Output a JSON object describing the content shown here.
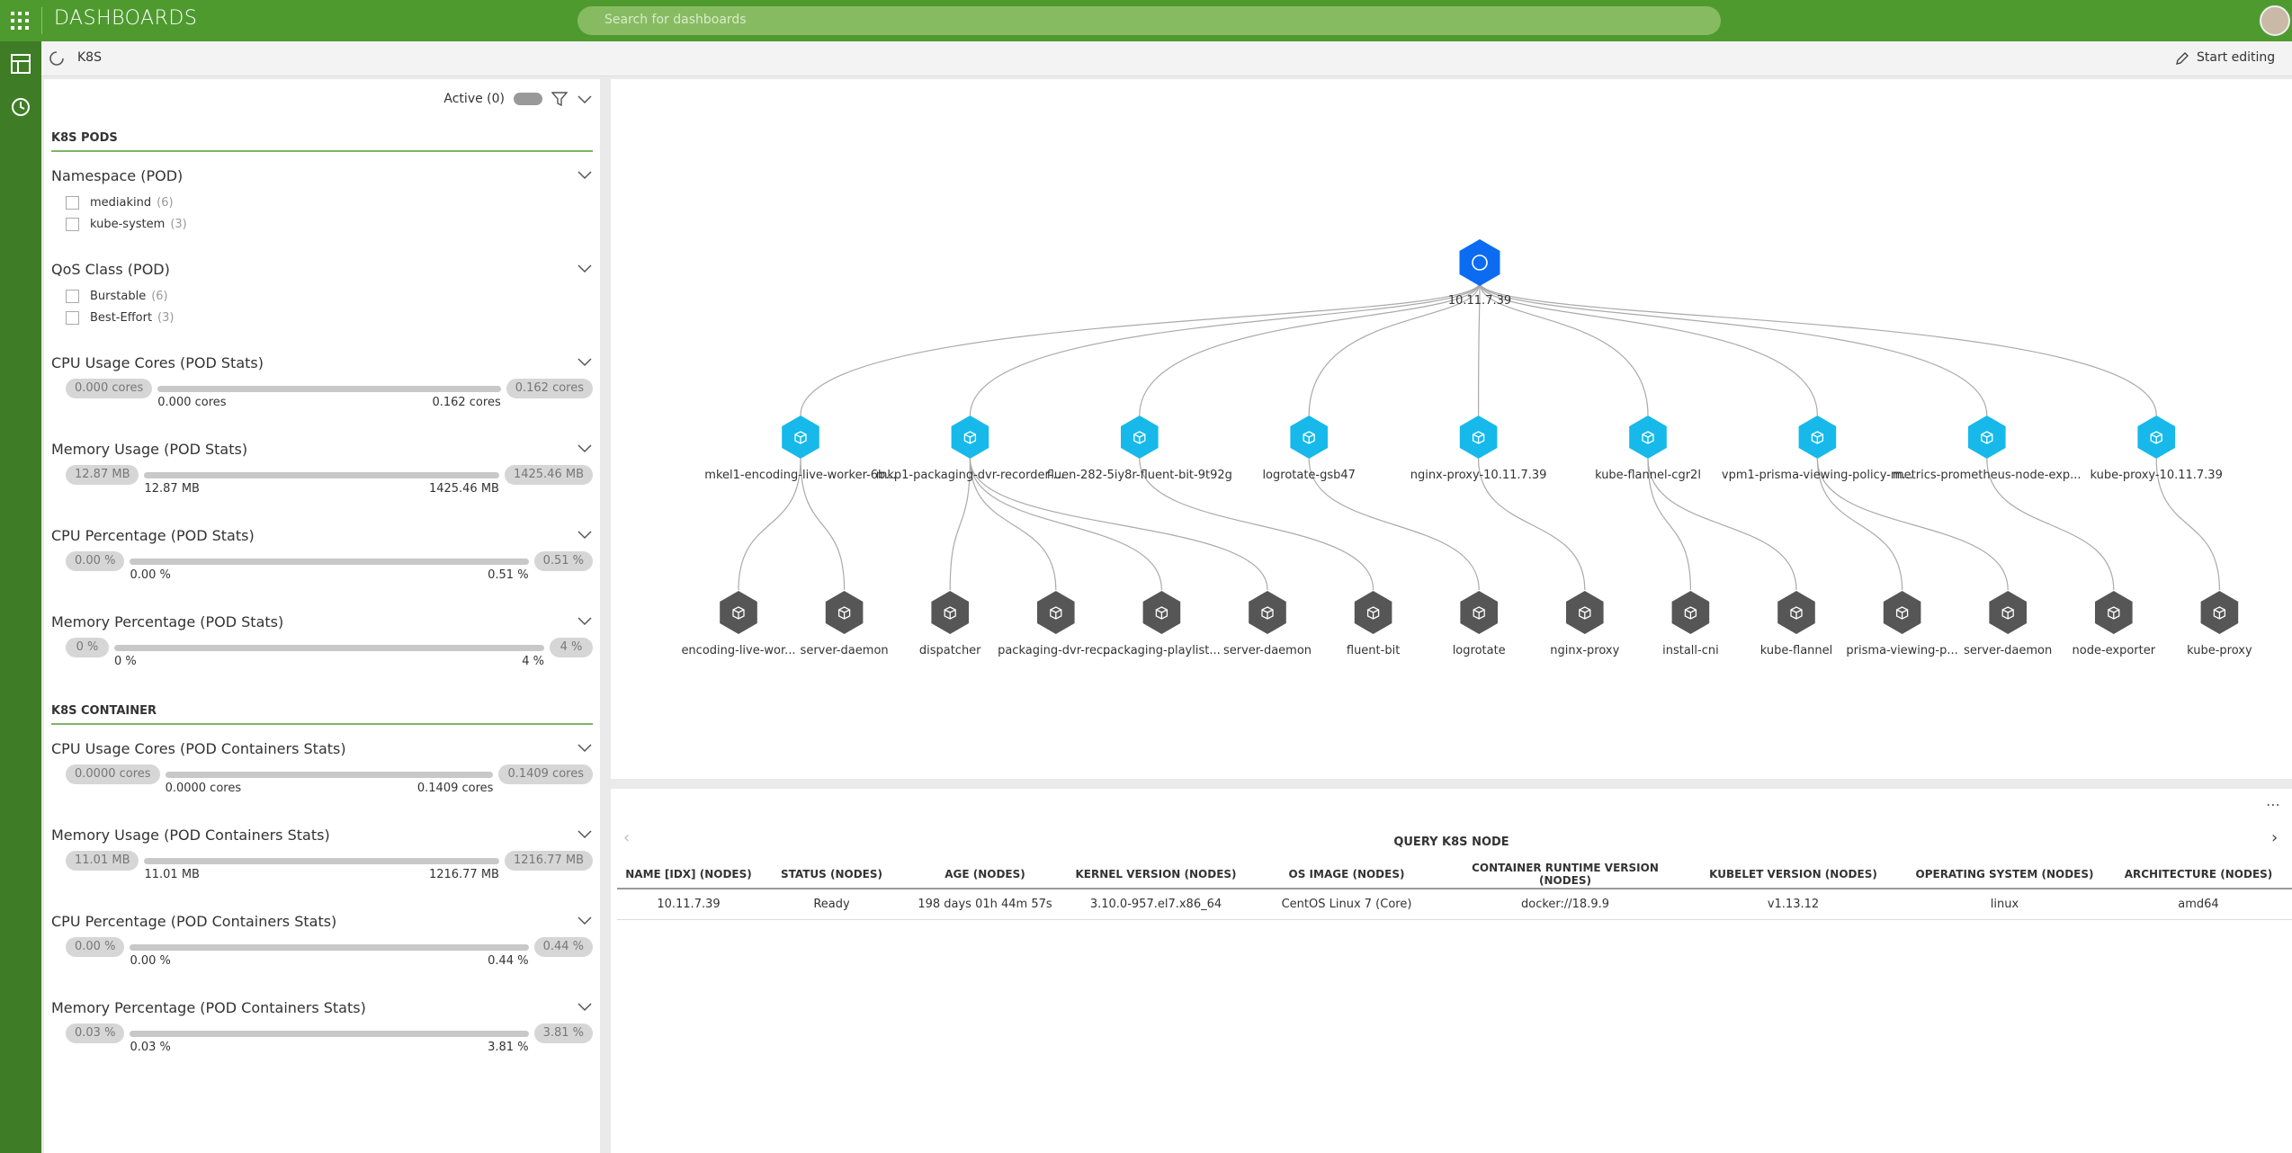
{
  "header": {
    "title": "DASHBOARDS",
    "search_placeholder": "Search for dashboards"
  },
  "toolbar": {
    "title": "K8S",
    "edit": "Start editing"
  },
  "filters": {
    "active": "Active (0)",
    "sections": [
      {
        "title": "K8S PODS",
        "groups": [
          {
            "title": "Namespace (POD)",
            "options": [
              {
                "label": "mediakind",
                "count": "(6)"
              },
              {
                "label": "kube-system",
                "count": "(3)"
              }
            ]
          },
          {
            "title": "QoS Class (POD)",
            "options": [
              {
                "label": "Burstable",
                "count": "(6)"
              },
              {
                "label": "Best-Effort",
                "count": "(3)"
              }
            ]
          },
          {
            "title": "CPU Usage Cores (POD Stats)",
            "min": "0.000 cores",
            "max": "0.162 cores"
          },
          {
            "title": "Memory Usage (POD Stats)",
            "min": "12.87 MB",
            "max": "1425.46 MB"
          },
          {
            "title": "CPU Percentage (POD Stats)",
            "min": "0.00 %",
            "max": "0.51 %"
          },
          {
            "title": "Memory Percentage (POD Stats)",
            "min": "0 %",
            "max": "4 %"
          }
        ]
      },
      {
        "title": "K8S CONTAINER",
        "groups": [
          {
            "title": "CPU Usage Cores (POD Containers Stats)",
            "min": "0.0000 cores",
            "max": "0.1409 cores"
          },
          {
            "title": "Memory Usage (POD Containers Stats)",
            "min": "11.01 MB",
            "max": "1216.77 MB"
          },
          {
            "title": "CPU Percentage (POD Containers Stats)",
            "min": "0.00 %",
            "max": "0.44 %"
          },
          {
            "title": "Memory Percentage (POD Containers Stats)",
            "min": "0.03 %",
            "max": "3.81 %"
          }
        ]
      }
    ]
  },
  "graph": {
    "root": {
      "label": "10.11.7.39",
      "pods": [
        {
          "label": "mkel1-encoding-live-worker-6b...",
          "containers": [
            {
              "label": "encoding-live-wor..."
            },
            {
              "label": "server-daemon"
            }
          ]
        },
        {
          "label": "mkp1-packaging-dvr-recorder-...",
          "containers": [
            {
              "label": "dispatcher"
            },
            {
              "label": "packaging-dvr-rec..."
            },
            {
              "label": "packaging-playlist..."
            },
            {
              "label": "server-daemon"
            }
          ]
        },
        {
          "label": "fluen-282-5iy8r-fluent-bit-9t92g",
          "containers": [
            {
              "label": "fluent-bit"
            }
          ]
        },
        {
          "label": "logrotate-gsb47",
          "containers": [
            {
              "label": "logrotate"
            }
          ]
        },
        {
          "label": "nginx-proxy-10.11.7.39",
          "containers": [
            {
              "label": "nginx-proxy"
            }
          ]
        },
        {
          "label": "kube-flannel-cgr2l",
          "containers": [
            {
              "label": "install-cni"
            },
            {
              "label": "kube-flannel"
            }
          ]
        },
        {
          "label": "vpm1-prisma-viewing-policy-m...",
          "containers": [
            {
              "label": "prisma-viewing-p..."
            },
            {
              "label": "server-daemon"
            }
          ]
        },
        {
          "label": "metrics-prometheus-node-exp...",
          "containers": [
            {
              "label": "node-exporter"
            }
          ]
        },
        {
          "label": "kube-proxy-10.11.7.39",
          "containers": [
            {
              "label": "kube-proxy"
            }
          ]
        }
      ]
    }
  },
  "table": {
    "title": "QUERY K8S NODE",
    "columns": [
      "NAME [IDX] (NODES)",
      "STATUS (NODES)",
      "AGE (NODES)",
      "KERNEL VERSION (NODES)",
      "OS IMAGE (NODES)",
      "CONTAINER RUNTIME VERSION (NODES)",
      "KUBELET VERSION (NODES)",
      "OPERATING SYSTEM (NODES)",
      "ARCHITECTURE (NODES)"
    ],
    "rows": [
      [
        "10.11.7.39",
        "Ready",
        "198 days 01h 44m 57s",
        "3.10.0-957.el7.x86_64",
        "CentOS Linux 7 (Core)",
        "docker://18.9.9",
        "v1.13.12",
        "linux",
        "amd64"
      ]
    ]
  }
}
